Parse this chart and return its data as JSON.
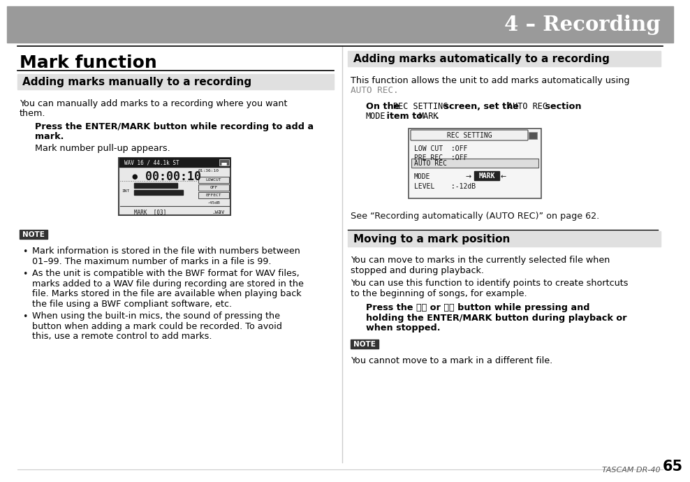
{
  "bg_color": "#ffffff",
  "header_bg": "#9a9a9a",
  "header_text": "4 – Recording",
  "header_text_color": "#ffffff",
  "title_text": "Mark function",
  "left_section1_title": "Adding marks manually to a recording",
  "left_section1_body1": "You can manually add marks to a recording where you want",
  "left_section1_body2": "them.",
  "left_bold1": "Press the ENTER/MARK button while recording to add a",
  "left_bold2": "mark.",
  "left_body2": "Mark number pull-up appears.",
  "note_bg": "#333333",
  "note_text_color": "#ffffff",
  "note_label": "NOTE",
  "bullet1a": "Mark information is stored in the file with numbers between",
  "bullet1b": "01–99. The maximum number of marks in a file is 99.",
  "bullet2a": "As the unit is compatible with the BWF format for WAV files,",
  "bullet2b": "marks added to a WAV file during recording are stored in the",
  "bullet2c": "file. Marks stored in the file are available when playing back",
  "bullet2d": "the file using a BWF compliant software, etc.",
  "bullet3a": "When using the built-in mics, the sound of pressing the",
  "bullet3b": "button when adding a mark could be recorded. To avoid",
  "bullet3c": "this, use a remote control to add marks.",
  "right_section1_title": "Adding marks automatically to a recording",
  "right_body1a": "This function allows the unit to add marks automatically using",
  "right_body1b": "AUTO REC.",
  "right_section2_ref": "See “Recording automatically (AUTO REC)” on page 62.",
  "right_section2_title": "Moving to a mark position",
  "right_s2_body1a": "You can move to marks in the currently selected file when",
  "right_s2_body1b": "stopped and during playback.",
  "right_s2_body2a": "You can use this function to identify points to create shortcuts",
  "right_s2_body2b": "to the beginning of songs, for example.",
  "right_bold3a": "Press the ⏮⏮ or ⏭⏭ button while pressing and",
  "right_bold3b": "holding the ENTER/MARK button during playback or",
  "right_bold3c": "when stopped.",
  "note2_body": "You cannot move to a mark in a different file.",
  "footer_left": "TASCAM DR-40",
  "footer_page": "65",
  "section_bg": "#e0e0e0"
}
